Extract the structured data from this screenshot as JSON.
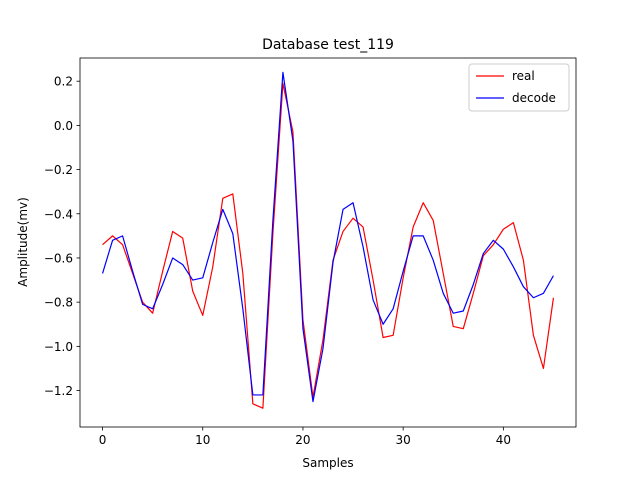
{
  "chart_data": {
    "type": "line",
    "title": "Database test_119",
    "xlabel": "Samples",
    "ylabel": "Amplitude(mv)",
    "xlim": [
      -2.25,
      47.25
    ],
    "ylim": [
      -1.365,
      0.305
    ],
    "xticks": [
      0,
      10,
      20,
      30,
      40
    ],
    "yticks": [
      -1.2,
      -1.0,
      -0.8,
      -0.6,
      -0.4,
      -0.2,
      0.0,
      0.2
    ],
    "xtick_labels": [
      "0",
      "10",
      "20",
      "30",
      "40"
    ],
    "ytick_labels": [
      "−1.2",
      "−1.0",
      "−0.8",
      "−0.6",
      "−0.4",
      "−0.2",
      "0.0",
      "0.2"
    ],
    "legend_position": "top-right",
    "grid": false,
    "x": [
      0,
      1,
      2,
      3,
      4,
      5,
      6,
      7,
      8,
      9,
      10,
      11,
      12,
      13,
      14,
      15,
      16,
      17,
      18,
      19,
      20,
      21,
      22,
      23,
      24,
      25,
      26,
      27,
      28,
      29,
      30,
      31,
      32,
      33,
      34,
      35,
      36,
      37,
      38,
      39,
      40,
      41,
      42,
      43,
      44,
      45
    ],
    "series": [
      {
        "name": "real",
        "color": "#ff0000",
        "values": [
          -0.54,
          -0.5,
          -0.54,
          -0.67,
          -0.8,
          -0.85,
          -0.66,
          -0.48,
          -0.51,
          -0.75,
          -0.86,
          -0.64,
          -0.33,
          -0.31,
          -0.67,
          -1.26,
          -1.28,
          -0.49,
          0.19,
          -0.03,
          -0.88,
          -1.23,
          -0.97,
          -0.61,
          -0.48,
          -0.42,
          -0.46,
          -0.7,
          -0.96,
          -0.95,
          -0.69,
          -0.46,
          -0.35,
          -0.43,
          -0.67,
          -0.91,
          -0.92,
          -0.76,
          -0.59,
          -0.54,
          -0.47,
          -0.44,
          -0.61,
          -0.95,
          -1.1,
          -0.78
        ]
      },
      {
        "name": "decode",
        "color": "#0000ff",
        "values": [
          -0.67,
          -0.52,
          -0.5,
          -0.66,
          -0.81,
          -0.83,
          -0.72,
          -0.6,
          -0.63,
          -0.7,
          -0.69,
          -0.53,
          -0.38,
          -0.49,
          -0.83,
          -1.22,
          -1.22,
          -0.43,
          0.24,
          -0.07,
          -0.92,
          -1.25,
          -1.01,
          -0.62,
          -0.38,
          -0.35,
          -0.55,
          -0.79,
          -0.9,
          -0.83,
          -0.66,
          -0.5,
          -0.5,
          -0.61,
          -0.76,
          -0.85,
          -0.84,
          -0.72,
          -0.58,
          -0.52,
          -0.56,
          -0.64,
          -0.73,
          -0.78,
          -0.76,
          -0.68
        ]
      }
    ]
  }
}
